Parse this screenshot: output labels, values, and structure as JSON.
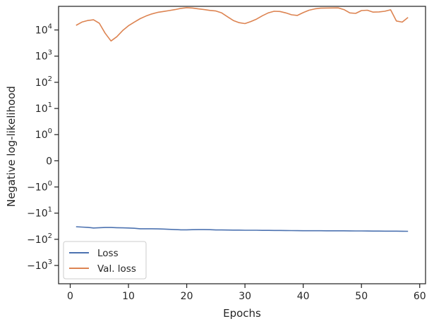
{
  "chart_data": {
    "type": "line",
    "title": "",
    "xlabel": "Epochs",
    "ylabel": "Negative log-likelihood",
    "yscale": "symlog",
    "xlim": [
      -2,
      61
    ],
    "ylim": [
      -5000,
      80000
    ],
    "grid": false,
    "legend": "bottom-left",
    "x_ticks": [
      {
        "value": 0,
        "label": "0"
      },
      {
        "value": 10,
        "label": "10"
      },
      {
        "value": 20,
        "label": "20"
      },
      {
        "value": 30,
        "label": "30"
      },
      {
        "value": 40,
        "label": "40"
      },
      {
        "value": 50,
        "label": "50"
      },
      {
        "value": 60,
        "label": "60"
      }
    ],
    "y_ticks": [
      {
        "value": 10000,
        "base": "10",
        "exp": "4"
      },
      {
        "value": 1000,
        "base": "10",
        "exp": "3"
      },
      {
        "value": 100,
        "base": "10",
        "exp": "2"
      },
      {
        "value": 10,
        "base": "10",
        "exp": "1"
      },
      {
        "value": 1,
        "base": "10",
        "exp": "0"
      },
      {
        "value": 0,
        "base": "0",
        "exp": ""
      },
      {
        "value": -1,
        "base": "−10",
        "exp": "0"
      },
      {
        "value": -10,
        "base": "−10",
        "exp": "1"
      },
      {
        "value": -100,
        "base": "−10",
        "exp": "2"
      },
      {
        "value": -1000,
        "base": "−10",
        "exp": "3"
      }
    ],
    "series": [
      {
        "name": "Loss",
        "color": "#4c72b0",
        "x": [
          1,
          2,
          3,
          4,
          5,
          6,
          7,
          8,
          9,
          10,
          11,
          12,
          13,
          14,
          15,
          16,
          17,
          18,
          19,
          20,
          21,
          22,
          23,
          24,
          25,
          26,
          27,
          28,
          29,
          30,
          31,
          32,
          33,
          34,
          35,
          36,
          37,
          38,
          39,
          40,
          41,
          42,
          43,
          44,
          45,
          46,
          47,
          48,
          49,
          50,
          51,
          52,
          53,
          54,
          55,
          56,
          57,
          58
        ],
        "y": [
          -33,
          -34,
          -35,
          -37,
          -36,
          -35.5,
          -35.5,
          -36,
          -36.5,
          -37,
          -38,
          -39.5,
          -39.5,
          -39.5,
          -40,
          -40.5,
          -41.5,
          -42.5,
          -43.5,
          -43.5,
          -43,
          -42.5,
          -42.5,
          -43,
          -44,
          -44,
          -44.2,
          -44.5,
          -44.6,
          -45,
          -45,
          -45.2,
          -45.5,
          -45.7,
          -46,
          -46,
          -46.2,
          -46.5,
          -46.7,
          -47,
          -47,
          -47,
          -47.2,
          -47.3,
          -47.3,
          -47.5,
          -47.5,
          -47.7,
          -48,
          -48,
          -48.2,
          -48.5,
          -48.7,
          -48.8,
          -49,
          -49,
          -49.2,
          -49.5
        ]
      },
      {
        "name": "Val. loss",
        "color": "#dd8452",
        "x": [
          1,
          2,
          3,
          4,
          5,
          6,
          7,
          8,
          9,
          10,
          11,
          12,
          13,
          14,
          15,
          16,
          17,
          18,
          19,
          20,
          21,
          22,
          23,
          24,
          25,
          26,
          27,
          28,
          29,
          30,
          31,
          32,
          33,
          34,
          35,
          36,
          37,
          38,
          39,
          40,
          41,
          42,
          43,
          44,
          45,
          46,
          47,
          48,
          49,
          50,
          51,
          52,
          53,
          54,
          55,
          56,
          57,
          58
        ],
        "y": [
          15000,
          20000,
          23000,
          24500,
          18000,
          7500,
          3800,
          5500,
          9500,
          14500,
          20000,
          27000,
          34000,
          41000,
          47000,
          51000,
          55000,
          60000,
          67000,
          71000,
          69000,
          64000,
          60000,
          56000,
          53000,
          45000,
          32000,
          23000,
          19000,
          17500,
          21000,
          26000,
          35000,
          45000,
          52000,
          51000,
          45000,
          38000,
          36000,
          46000,
          57000,
          64000,
          68000,
          69000,
          69500,
          70000,
          60000,
          45000,
          43000,
          55000,
          57000,
          48000,
          49000,
          52000,
          59000,
          22000,
          20000,
          30000
        ]
      }
    ]
  }
}
